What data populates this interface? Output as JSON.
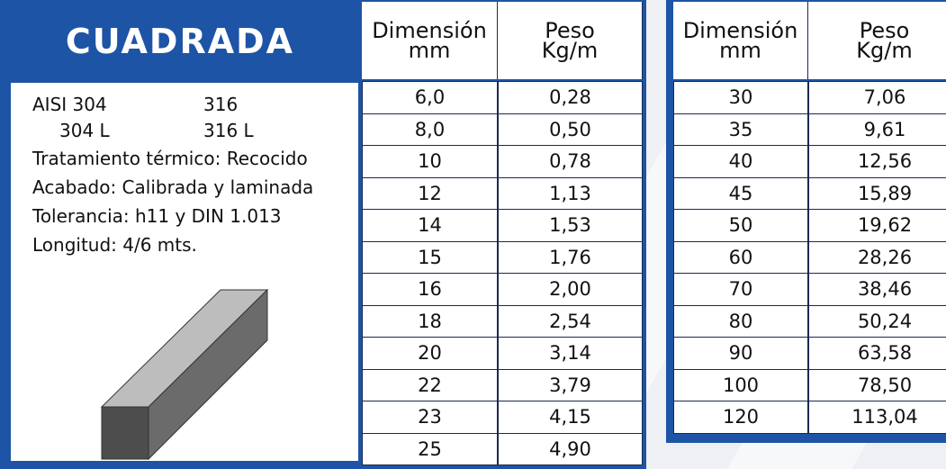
{
  "title": "CUADRADA",
  "info": {
    "grades": [
      [
        "AISI 304",
        "316"
      ],
      [
        "304 L",
        "316 L"
      ]
    ],
    "lines": [
      "Tratamiento térmico: Recocido",
      "Acabado: Calibrada y laminada",
      "Tolerancia: h11 y DIN 1.013",
      "Longitud: 4/6 mts."
    ]
  },
  "tables": [
    {
      "header": [
        [
          "Dimensión",
          "mm"
        ],
        [
          "Peso",
          "Kg/m"
        ]
      ],
      "rows": [
        [
          "6,0",
          "0,28"
        ],
        [
          "8,0",
          "0,50"
        ],
        [
          "10",
          "0,78"
        ],
        [
          "12",
          "1,13"
        ],
        [
          "14",
          "1,53"
        ],
        [
          "15",
          "1,76"
        ],
        [
          "16",
          "2,00"
        ],
        [
          "18",
          "2,54"
        ],
        [
          "20",
          "3,14"
        ],
        [
          "22",
          "3,79"
        ],
        [
          "23",
          "4,15"
        ],
        [
          "25",
          "4,90"
        ]
      ]
    },
    {
      "header": [
        [
          "Dimensión",
          "mm"
        ],
        [
          "Peso",
          "Kg/m"
        ]
      ],
      "rows": [
        [
          "30",
          "7,06"
        ],
        [
          "35",
          "9,61"
        ],
        [
          "40",
          "12,56"
        ],
        [
          "45",
          "15,89"
        ],
        [
          "50",
          "19,62"
        ],
        [
          "60",
          "28,26"
        ],
        [
          "70",
          "38,46"
        ],
        [
          "80",
          "50,24"
        ],
        [
          "90",
          "63,58"
        ],
        [
          "100",
          "78,50"
        ],
        [
          "120",
          "113,04"
        ]
      ]
    }
  ]
}
